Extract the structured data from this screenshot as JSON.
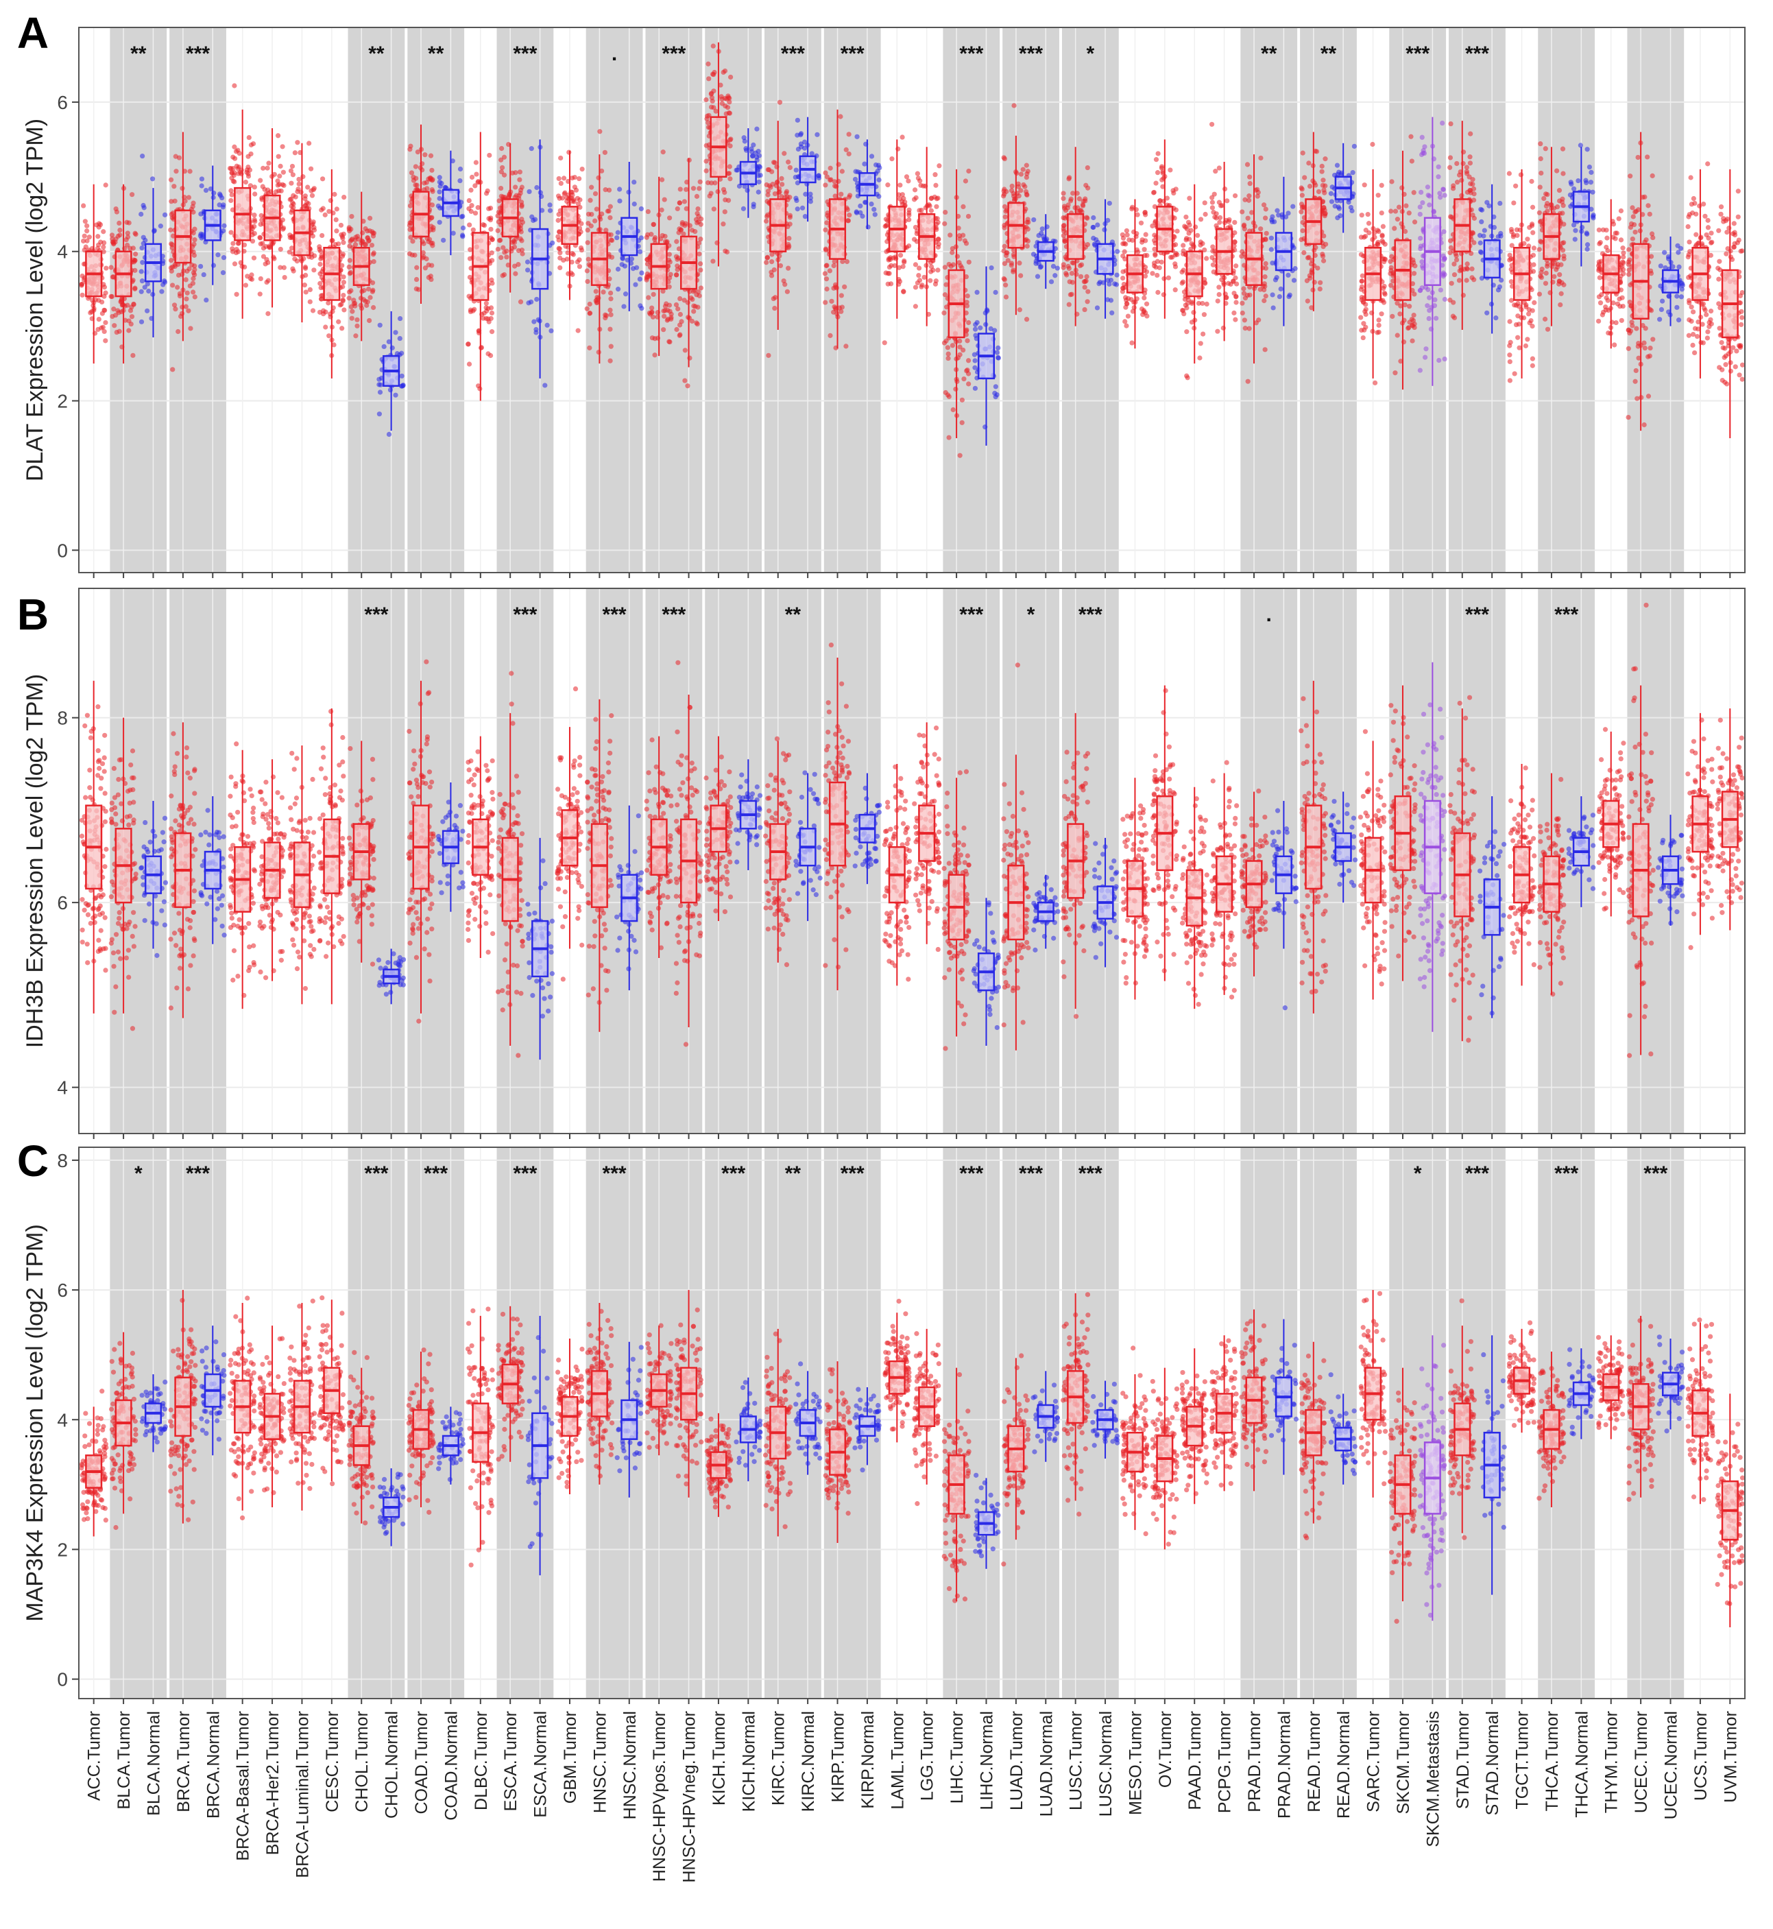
{
  "chart_data": {
    "type": "boxplot",
    "categories": [
      "ACC.Tumor",
      "BLCA.Tumor",
      "BLCA.Normal",
      "BRCA.Tumor",
      "BRCA.Normal",
      "BRCA-Basal.Tumor",
      "BRCA-Her2.Tumor",
      "BRCA-Luminal.Tumor",
      "CESC.Tumor",
      "CHOL.Tumor",
      "CHOL.Normal",
      "COAD.Tumor",
      "COAD.Normal",
      "DLBC.Tumor",
      "ESCA.Tumor",
      "ESCA.Normal",
      "GBM.Tumor",
      "HNSC.Tumor",
      "HNSC.Normal",
      "HNSC-HPVpos.Tumor",
      "HNSC-HPVneg.Tumor",
      "KICH.Tumor",
      "KICH.Normal",
      "KIRC.Tumor",
      "KIRC.Normal",
      "KIRP.Tumor",
      "KIRP.Normal",
      "LAML.Tumor",
      "LGG.Tumor",
      "LIHC.Tumor",
      "LIHC.Normal",
      "LUAD.Tumor",
      "LUAD.Normal",
      "LUSC.Tumor",
      "LUSC.Normal",
      "MESO.Tumor",
      "OV.Tumor",
      "PAAD.Tumor",
      "PCPG.Tumor",
      "PRAD.Tumor",
      "PRAD.Normal",
      "READ.Tumor",
      "READ.Normal",
      "SARC.Tumor",
      "SKCM.Tumor",
      "SKCM.Metastasis",
      "STAD.Tumor",
      "STAD.Normal",
      "TGCT.Tumor",
      "THCA.Tumor",
      "THCA.Normal",
      "THYM.Tumor",
      "UCEC.Tumor",
      "UCEC.Normal",
      "UCS.Tumor",
      "UVM.Tumor"
    ],
    "group_colors": {
      "Tumor": "#e8242a",
      "Normal": "#2a2ae6",
      "Metastasis": "#9b4ee0"
    },
    "shaded_bands": [
      [
        1,
        2
      ],
      [
        3,
        4
      ],
      [
        9,
        10
      ],
      [
        11,
        12
      ],
      [
        14,
        15
      ],
      [
        17,
        18
      ],
      [
        19,
        20
      ],
      [
        21,
        22
      ],
      [
        23,
        24
      ],
      [
        25,
        26
      ],
      [
        29,
        30
      ],
      [
        31,
        32
      ],
      [
        33,
        34
      ],
      [
        39,
        40
      ],
      [
        41,
        42
      ],
      [
        44,
        45
      ],
      [
        46,
        47
      ],
      [
        49,
        50
      ],
      [
        52,
        53
      ]
    ],
    "panels": [
      {
        "letter": "A",
        "ylabel": "DLAT Expression Level (log2 TPM)",
        "ylim": [
          -0.3,
          7.0
        ],
        "yticks": [
          0,
          2,
          4,
          6
        ],
        "medians": [
          3.7,
          3.7,
          3.85,
          4.2,
          4.35,
          4.5,
          4.45,
          4.25,
          3.7,
          3.8,
          2.4,
          4.5,
          4.65,
          3.8,
          4.45,
          3.9,
          4.35,
          3.9,
          4.2,
          3.8,
          3.85,
          5.4,
          5.05,
          4.35,
          5.1,
          4.3,
          4.9,
          4.3,
          4.2,
          3.3,
          2.6,
          4.35,
          4.0,
          4.2,
          3.9,
          3.7,
          4.3,
          3.7,
          4.0,
          3.9,
          4.0,
          4.4,
          4.85,
          3.7,
          3.75,
          4.0,
          4.35,
          3.9,
          3.7,
          4.2,
          4.6,
          3.7,
          3.6,
          3.6,
          3.7,
          3.3
        ],
        "iqr": [
          0.6,
          0.6,
          0.5,
          0.7,
          0.4,
          0.7,
          0.6,
          0.6,
          0.7,
          0.5,
          0.4,
          0.6,
          0.35,
          0.9,
          0.5,
          0.8,
          0.5,
          0.7,
          0.5,
          0.6,
          0.7,
          0.8,
          0.3,
          0.7,
          0.35,
          0.8,
          0.3,
          0.6,
          0.6,
          0.9,
          0.6,
          0.6,
          0.25,
          0.6,
          0.4,
          0.5,
          0.6,
          0.6,
          0.6,
          0.7,
          0.5,
          0.6,
          0.3,
          0.7,
          0.8,
          0.9,
          0.7,
          0.5,
          0.7,
          0.6,
          0.4,
          0.5,
          1.0,
          0.3,
          0.7,
          0.9
        ],
        "significance": [
          "",
          "",
          "**",
          "",
          "",
          "",
          "***",
          "**",
          "",
          "**",
          "",
          "***",
          ".",
          "",
          "***",
          "***",
          "",
          "***",
          "***",
          "***",
          "",
          "*",
          "**",
          "**",
          "***",
          "***",
          ""
        ]
      },
      {
        "letter": "B",
        "ylabel": "IDH3B Expression Level (log2 TPM)",
        "ylim": [
          3.5,
          9.4
        ],
        "yticks": [
          4,
          6,
          8
        ],
        "medians": [
          6.6,
          6.4,
          6.3,
          6.35,
          6.35,
          6.25,
          6.35,
          6.3,
          6.5,
          6.55,
          5.2,
          6.6,
          6.6,
          6.6,
          6.25,
          5.5,
          6.7,
          6.4,
          6.05,
          6.6,
          6.45,
          6.8,
          6.95,
          6.55,
          6.6,
          6.85,
          6.8,
          6.3,
          6.75,
          5.95,
          5.25,
          6.0,
          5.9,
          6.45,
          6.0,
          6.15,
          6.75,
          6.05,
          6.2,
          6.2,
          6.3,
          6.6,
          6.6,
          6.35,
          6.75,
          6.6,
          6.3,
          5.95,
          6.3,
          6.2,
          6.55,
          6.85,
          6.35,
          6.35,
          6.85,
          6.9
        ],
        "iqr": [
          0.9,
          0.8,
          0.4,
          0.8,
          0.4,
          0.7,
          0.6,
          0.7,
          0.8,
          0.6,
          0.15,
          0.9,
          0.35,
          0.6,
          0.9,
          0.6,
          0.6,
          0.9,
          0.5,
          0.6,
          0.9,
          0.5,
          0.3,
          0.6,
          0.4,
          0.9,
          0.3,
          0.6,
          0.6,
          0.7,
          0.4,
          0.8,
          0.2,
          0.8,
          0.35,
          0.6,
          0.8,
          0.6,
          0.6,
          0.5,
          0.4,
          0.9,
          0.3,
          0.7,
          0.8,
          1.0,
          0.9,
          0.6,
          0.6,
          0.6,
          0.3,
          0.5,
          1.0,
          0.3,
          0.6,
          0.6
        ],
        "significance": [
          "",
          "",
          "",
          "",
          "",
          "",
          "***",
          "",
          "",
          "***",
          "",
          "***",
          "***",
          "",
          "**",
          "",
          "",
          "***",
          "*",
          "***",
          "",
          ".",
          "",
          "",
          "",
          "***",
          "***"
        ]
      },
      {
        "letter": "C",
        "ylabel": "MAP3K4 Expression Level (log2 TPM)",
        "ylim": [
          -0.3,
          8.2
        ],
        "yticks": [
          0,
          2,
          4,
          6,
          8
        ],
        "medians": [
          3.2,
          3.95,
          4.1,
          4.2,
          4.45,
          4.2,
          4.05,
          4.2,
          4.45,
          3.6,
          2.65,
          3.85,
          3.6,
          3.8,
          4.55,
          3.6,
          4.05,
          4.4,
          4.0,
          4.45,
          4.4,
          3.3,
          3.85,
          3.8,
          3.95,
          3.5,
          3.9,
          4.65,
          4.2,
          3.0,
          2.4,
          3.55,
          4.05,
          4.35,
          4.0,
          3.5,
          3.4,
          3.9,
          4.1,
          4.3,
          4.35,
          3.8,
          3.7,
          4.4,
          3.0,
          3.1,
          3.85,
          3.3,
          4.6,
          3.85,
          4.4,
          4.5,
          4.2,
          4.55,
          4.1,
          2.6
        ],
        "iqr": [
          0.5,
          0.7,
          0.3,
          0.9,
          0.5,
          0.8,
          0.7,
          0.8,
          0.7,
          0.6,
          0.3,
          0.6,
          0.3,
          0.9,
          0.6,
          1.0,
          0.6,
          0.7,
          0.6,
          0.5,
          0.8,
          0.4,
          0.4,
          0.8,
          0.4,
          0.7,
          0.3,
          0.5,
          0.6,
          0.9,
          0.35,
          0.7,
          0.35,
          0.8,
          0.3,
          0.6,
          0.7,
          0.6,
          0.6,
          0.7,
          0.6,
          0.7,
          0.35,
          0.8,
          0.9,
          1.1,
          0.8,
          1.0,
          0.4,
          0.6,
          0.35,
          0.4,
          0.7,
          0.35,
          0.7,
          0.9
        ],
        "significance": [
          "",
          "*",
          "***",
          "",
          "",
          "",
          "***",
          "***",
          "",
          "***",
          "",
          "***",
          "",
          "***",
          "**",
          "***",
          "",
          "***",
          "***",
          "***",
          "",
          "",
          "",
          "*",
          "***",
          "***",
          "***"
        ]
      }
    ]
  }
}
